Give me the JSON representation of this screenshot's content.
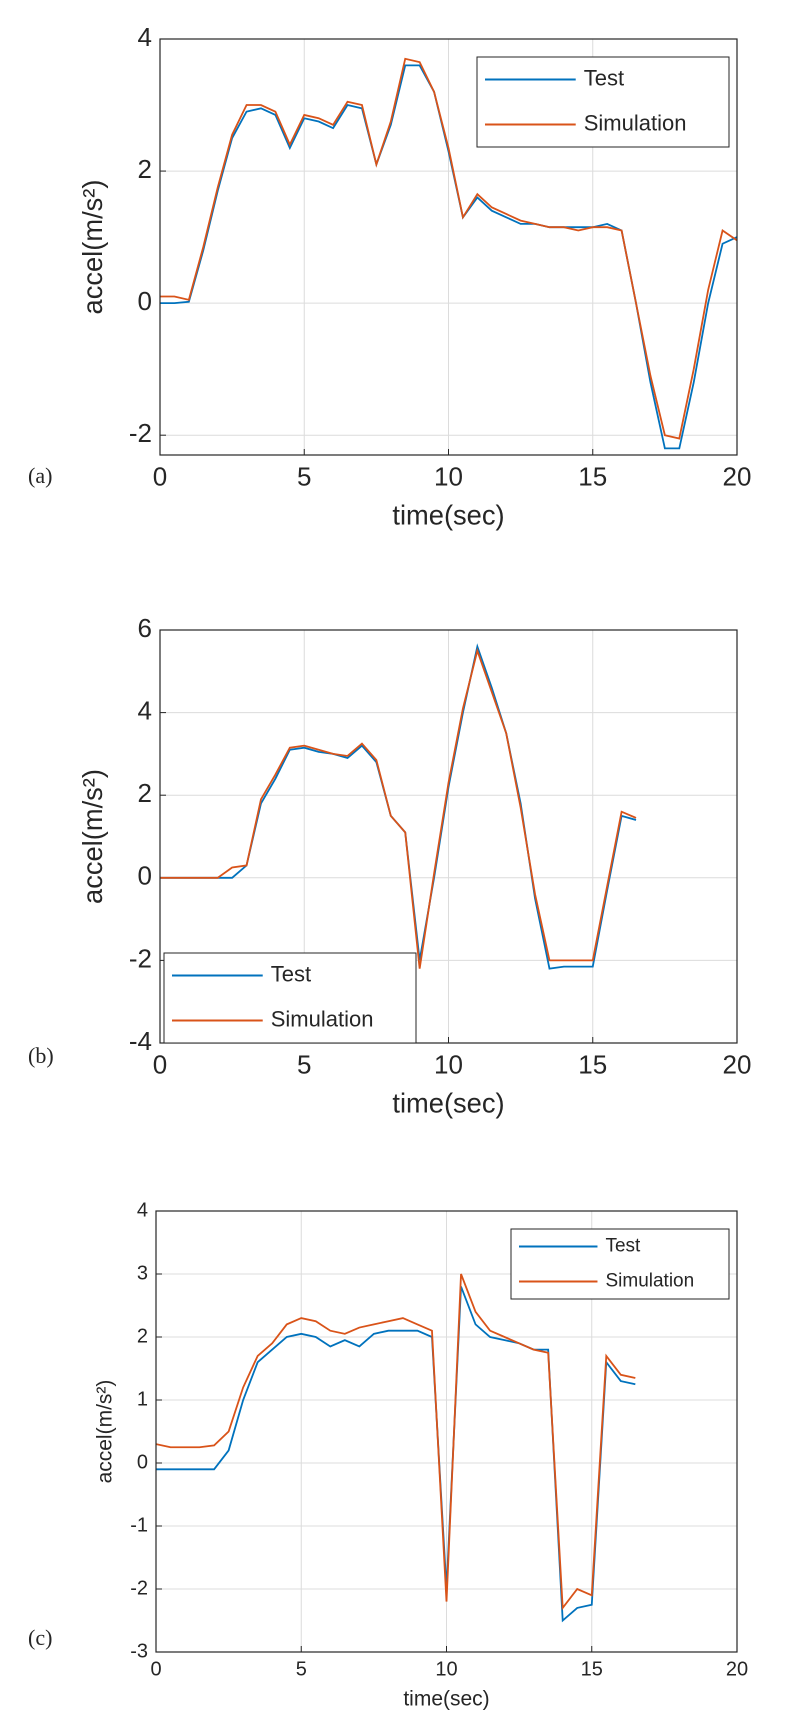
{
  "chart_data": [
    {
      "type": "line",
      "label": "(a)",
      "xlabel": "time(sec)",
      "ylabel": "accel(m/s²)",
      "x": [
        0,
        0.5,
        1,
        1.5,
        2,
        2.5,
        3,
        3.5,
        4,
        4.5,
        5,
        5.5,
        6,
        6.5,
        7,
        7.5,
        8,
        8.5,
        9,
        9.5,
        10,
        10.5,
        11,
        11.5,
        12,
        12.5,
        13,
        13.5,
        14,
        14.5,
        15,
        15.5,
        16,
        16.5,
        17,
        17.5,
        18,
        18.5,
        19,
        19.5,
        20
      ],
      "series": [
        {
          "name": "Test",
          "color": "#0072bd",
          "values": [
            0,
            0,
            0.02,
            0.8,
            1.7,
            2.5,
            2.9,
            2.95,
            2.85,
            2.35,
            2.8,
            2.75,
            2.65,
            3.0,
            2.95,
            2.1,
            2.7,
            3.6,
            3.6,
            3.2,
            2.3,
            1.3,
            1.6,
            1.4,
            1.3,
            1.2,
            1.2,
            1.15,
            1.15,
            1.15,
            1.15,
            1.2,
            1.1,
            0,
            -1.2,
            -2.2,
            -2.2,
            -1.2,
            0,
            0.9,
            1.0
          ]
        },
        {
          "name": "Simulation",
          "color": "#d95319",
          "values": [
            0.1,
            0.1,
            0.05,
            0.85,
            1.75,
            2.55,
            3.0,
            3.0,
            2.9,
            2.4,
            2.85,
            2.8,
            2.7,
            3.05,
            3.0,
            2.1,
            2.75,
            3.7,
            3.65,
            3.2,
            2.35,
            1.3,
            1.65,
            1.45,
            1.35,
            1.25,
            1.2,
            1.15,
            1.15,
            1.1,
            1.15,
            1.15,
            1.1,
            0,
            -1.1,
            -2.0,
            -2.05,
            -1.0,
            0.2,
            1.1,
            0.95
          ]
        }
      ],
      "xlim": [
        0,
        20
      ],
      "xticks": [
        0,
        5,
        10,
        15,
        20
      ],
      "ylim": [
        -2.3,
        4
      ],
      "yticks": [
        -2,
        0,
        2,
        4
      ],
      "grid": true,
      "legend": "upper right"
    },
    {
      "type": "line",
      "label": "(b)",
      "xlabel": "time(sec)",
      "ylabel": "accel(m/s²)",
      "x": [
        0,
        0.5,
        1,
        1.5,
        2,
        2.5,
        3,
        3.5,
        4,
        4.5,
        5,
        5.5,
        6,
        6.5,
        7,
        7.5,
        8,
        8.5,
        9,
        9.5,
        10,
        10.5,
        11,
        11.5,
        12,
        12.5,
        13,
        13.5,
        14,
        14.5,
        15,
        15.5,
        16,
        16.5
      ],
      "series": [
        {
          "name": "Test",
          "color": "#0072bd",
          "values": [
            0,
            0,
            0,
            0,
            0,
            0,
            0.3,
            1.8,
            2.4,
            3.1,
            3.15,
            3.05,
            3.0,
            2.9,
            3.2,
            2.8,
            1.5,
            1.1,
            -2.0,
            0,
            2.2,
            4.0,
            5.6,
            4.6,
            3.5,
            1.8,
            -0.5,
            -2.2,
            -2.15,
            -2.15,
            -2.15,
            -0.3,
            1.5,
            1.4
          ]
        },
        {
          "name": "Simulation",
          "color": "#d95319",
          "values": [
            0,
            0,
            0,
            0,
            0,
            0.25,
            0.3,
            1.9,
            2.5,
            3.15,
            3.2,
            3.1,
            3.0,
            2.95,
            3.25,
            2.85,
            1.5,
            1.1,
            -2.2,
            0.1,
            2.3,
            4.1,
            5.5,
            4.5,
            3.5,
            1.7,
            -0.4,
            -2.0,
            -2.0,
            -2.0,
            -2.0,
            -0.2,
            1.6,
            1.45
          ]
        }
      ],
      "xlim": [
        0,
        20
      ],
      "xticks": [
        0,
        5,
        10,
        15,
        20
      ],
      "ylim": [
        -4,
        6
      ],
      "yticks": [
        -4,
        -2,
        0,
        2,
        4,
        6
      ],
      "grid": true,
      "legend": "lower left"
    },
    {
      "type": "line",
      "label": "(c)",
      "xlabel": "time(sec)",
      "ylabel": "accel(m/s²)",
      "x": [
        0,
        0.5,
        1,
        1.5,
        2,
        2.5,
        3,
        3.5,
        4,
        4.5,
        5,
        5.5,
        6,
        6.5,
        7,
        7.5,
        8,
        8.5,
        9,
        9.5,
        10,
        10.5,
        11,
        11.5,
        12,
        12.5,
        13,
        13.5,
        14,
        14.5,
        15,
        15.5,
        16,
        16.5
      ],
      "series": [
        {
          "name": "Test",
          "color": "#0072bd",
          "values": [
            -0.1,
            -0.1,
            -0.1,
            -0.1,
            -0.1,
            0.2,
            1.0,
            1.6,
            1.8,
            2.0,
            2.05,
            2.0,
            1.85,
            1.95,
            1.85,
            2.05,
            2.1,
            2.1,
            2.1,
            2.0,
            -2.0,
            2.8,
            2.2,
            2.0,
            1.95,
            1.9,
            1.8,
            1.8,
            -2.5,
            -2.3,
            -2.25,
            1.6,
            1.3,
            1.25
          ]
        },
        {
          "name": "Simulation",
          "color": "#d95319",
          "values": [
            0.3,
            0.25,
            0.25,
            0.25,
            0.28,
            0.5,
            1.2,
            1.7,
            1.9,
            2.2,
            2.3,
            2.25,
            2.1,
            2.05,
            2.15,
            2.2,
            2.25,
            2.3,
            2.2,
            2.1,
            -2.2,
            3.0,
            2.4,
            2.1,
            2.0,
            1.9,
            1.8,
            1.75,
            -2.3,
            -2.0,
            -2.1,
            1.7,
            1.4,
            1.35
          ]
        }
      ],
      "xlim": [
        0,
        20
      ],
      "xticks": [
        0,
        5,
        10,
        15,
        20
      ],
      "ylim": [
        -3,
        4
      ],
      "yticks": [
        -3,
        -2,
        -1,
        0,
        1,
        2,
        3,
        4
      ],
      "grid": true,
      "legend": "upper right"
    }
  ]
}
